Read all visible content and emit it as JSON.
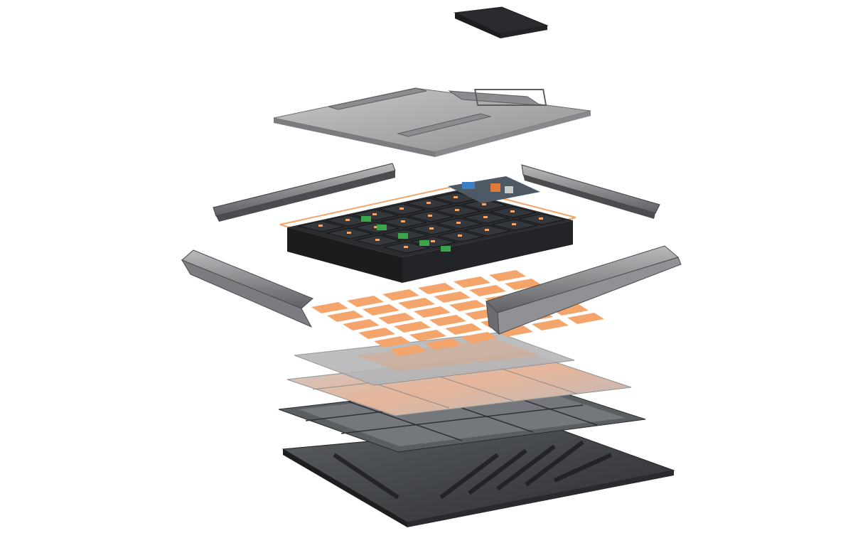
{
  "diagram": {
    "type": "exploded-view",
    "labels_printed": [],
    "layers_top_to_bottom": [
      "connector-cover",
      "top-lid",
      "side-rail-rear-left",
      "side-rail-rear-right",
      "battery-module-array",
      "side-rail-front-left",
      "side-rail-front-right",
      "thermal-pad-sheet",
      "insulation-sheet",
      "cooling-plate",
      "tray-frame",
      "base-plate"
    ],
    "colors": {
      "background": "#ffffff",
      "lid": "#a4a6a8",
      "rail": "#8c8e90",
      "module": "#26282b",
      "accent": "#f3a56b",
      "pcb": "#3aa54a",
      "tray": "#55585c",
      "base": "#3a3c40"
    }
  }
}
